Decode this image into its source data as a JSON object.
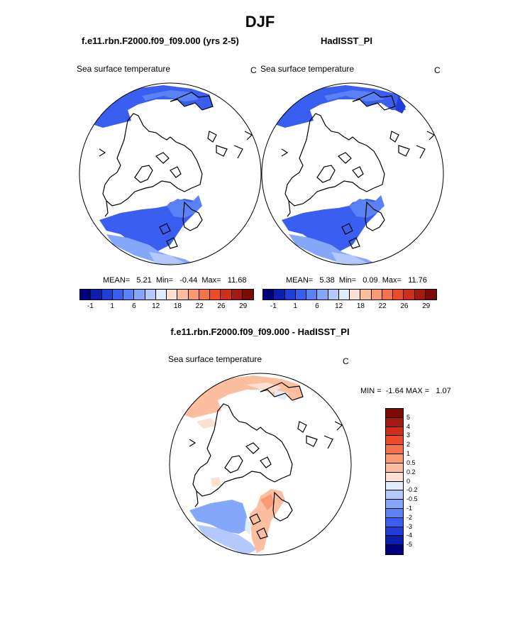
{
  "title": "DJF",
  "panels": {
    "model": {
      "case_title": "f.e11.rbn.F2000.f09_f09.000 (yrs 2-5)",
      "variable": "Sea surface temperature",
      "units": "C",
      "stats": "MEAN=   5.21  Min=   -0.44  Max=   11.68"
    },
    "obs": {
      "case_title": "HadISST_PI",
      "variable": "Sea surface temperature",
      "units": "C",
      "stats": "MEAN=   5.38  Min=   0.09  Max=   11.76"
    },
    "diff": {
      "case_title": "f.e11.rbn.F2000.f09_f09.000 - HadISST_PI",
      "variable": "Sea surface temperature",
      "units": "C",
      "stats": "MIN =  -1.64 MAX =   1.07"
    }
  },
  "colorbar_abs": {
    "colors": [
      "#00007f",
      "#0a1fb0",
      "#1f3fd8",
      "#3a5ef0",
      "#5b82f5",
      "#84a7fa",
      "#b3c9fc",
      "#e1ecfc",
      "#fde0d2",
      "#fbbfa0",
      "#f89a73",
      "#f5734b",
      "#ec4c28",
      "#d0301b",
      "#a51a0f",
      "#7a0b05"
    ],
    "tick_labels": [
      "-1",
      "1",
      "6",
      "12",
      "18",
      "22",
      "26",
      "29"
    ]
  },
  "colorbar_diff": {
    "colors": [
      "#7a0b05",
      "#a51a0f",
      "#d0301b",
      "#ec4c28",
      "#f5734b",
      "#f89a73",
      "#fbbfa0",
      "#fde0d2",
      "#e1ecfc",
      "#b3c9fc",
      "#84a7fa",
      "#5b82f5",
      "#3a5ef0",
      "#1f3fd8",
      "#0a1fb0",
      "#00007f"
    ],
    "tick_labels": [
      "5",
      "4",
      "3",
      "2",
      "1",
      "0.5",
      "0.2",
      "0",
      "-0.2",
      "-0.5",
      "-1",
      "-2",
      "-3",
      "-4",
      "-5"
    ]
  }
}
